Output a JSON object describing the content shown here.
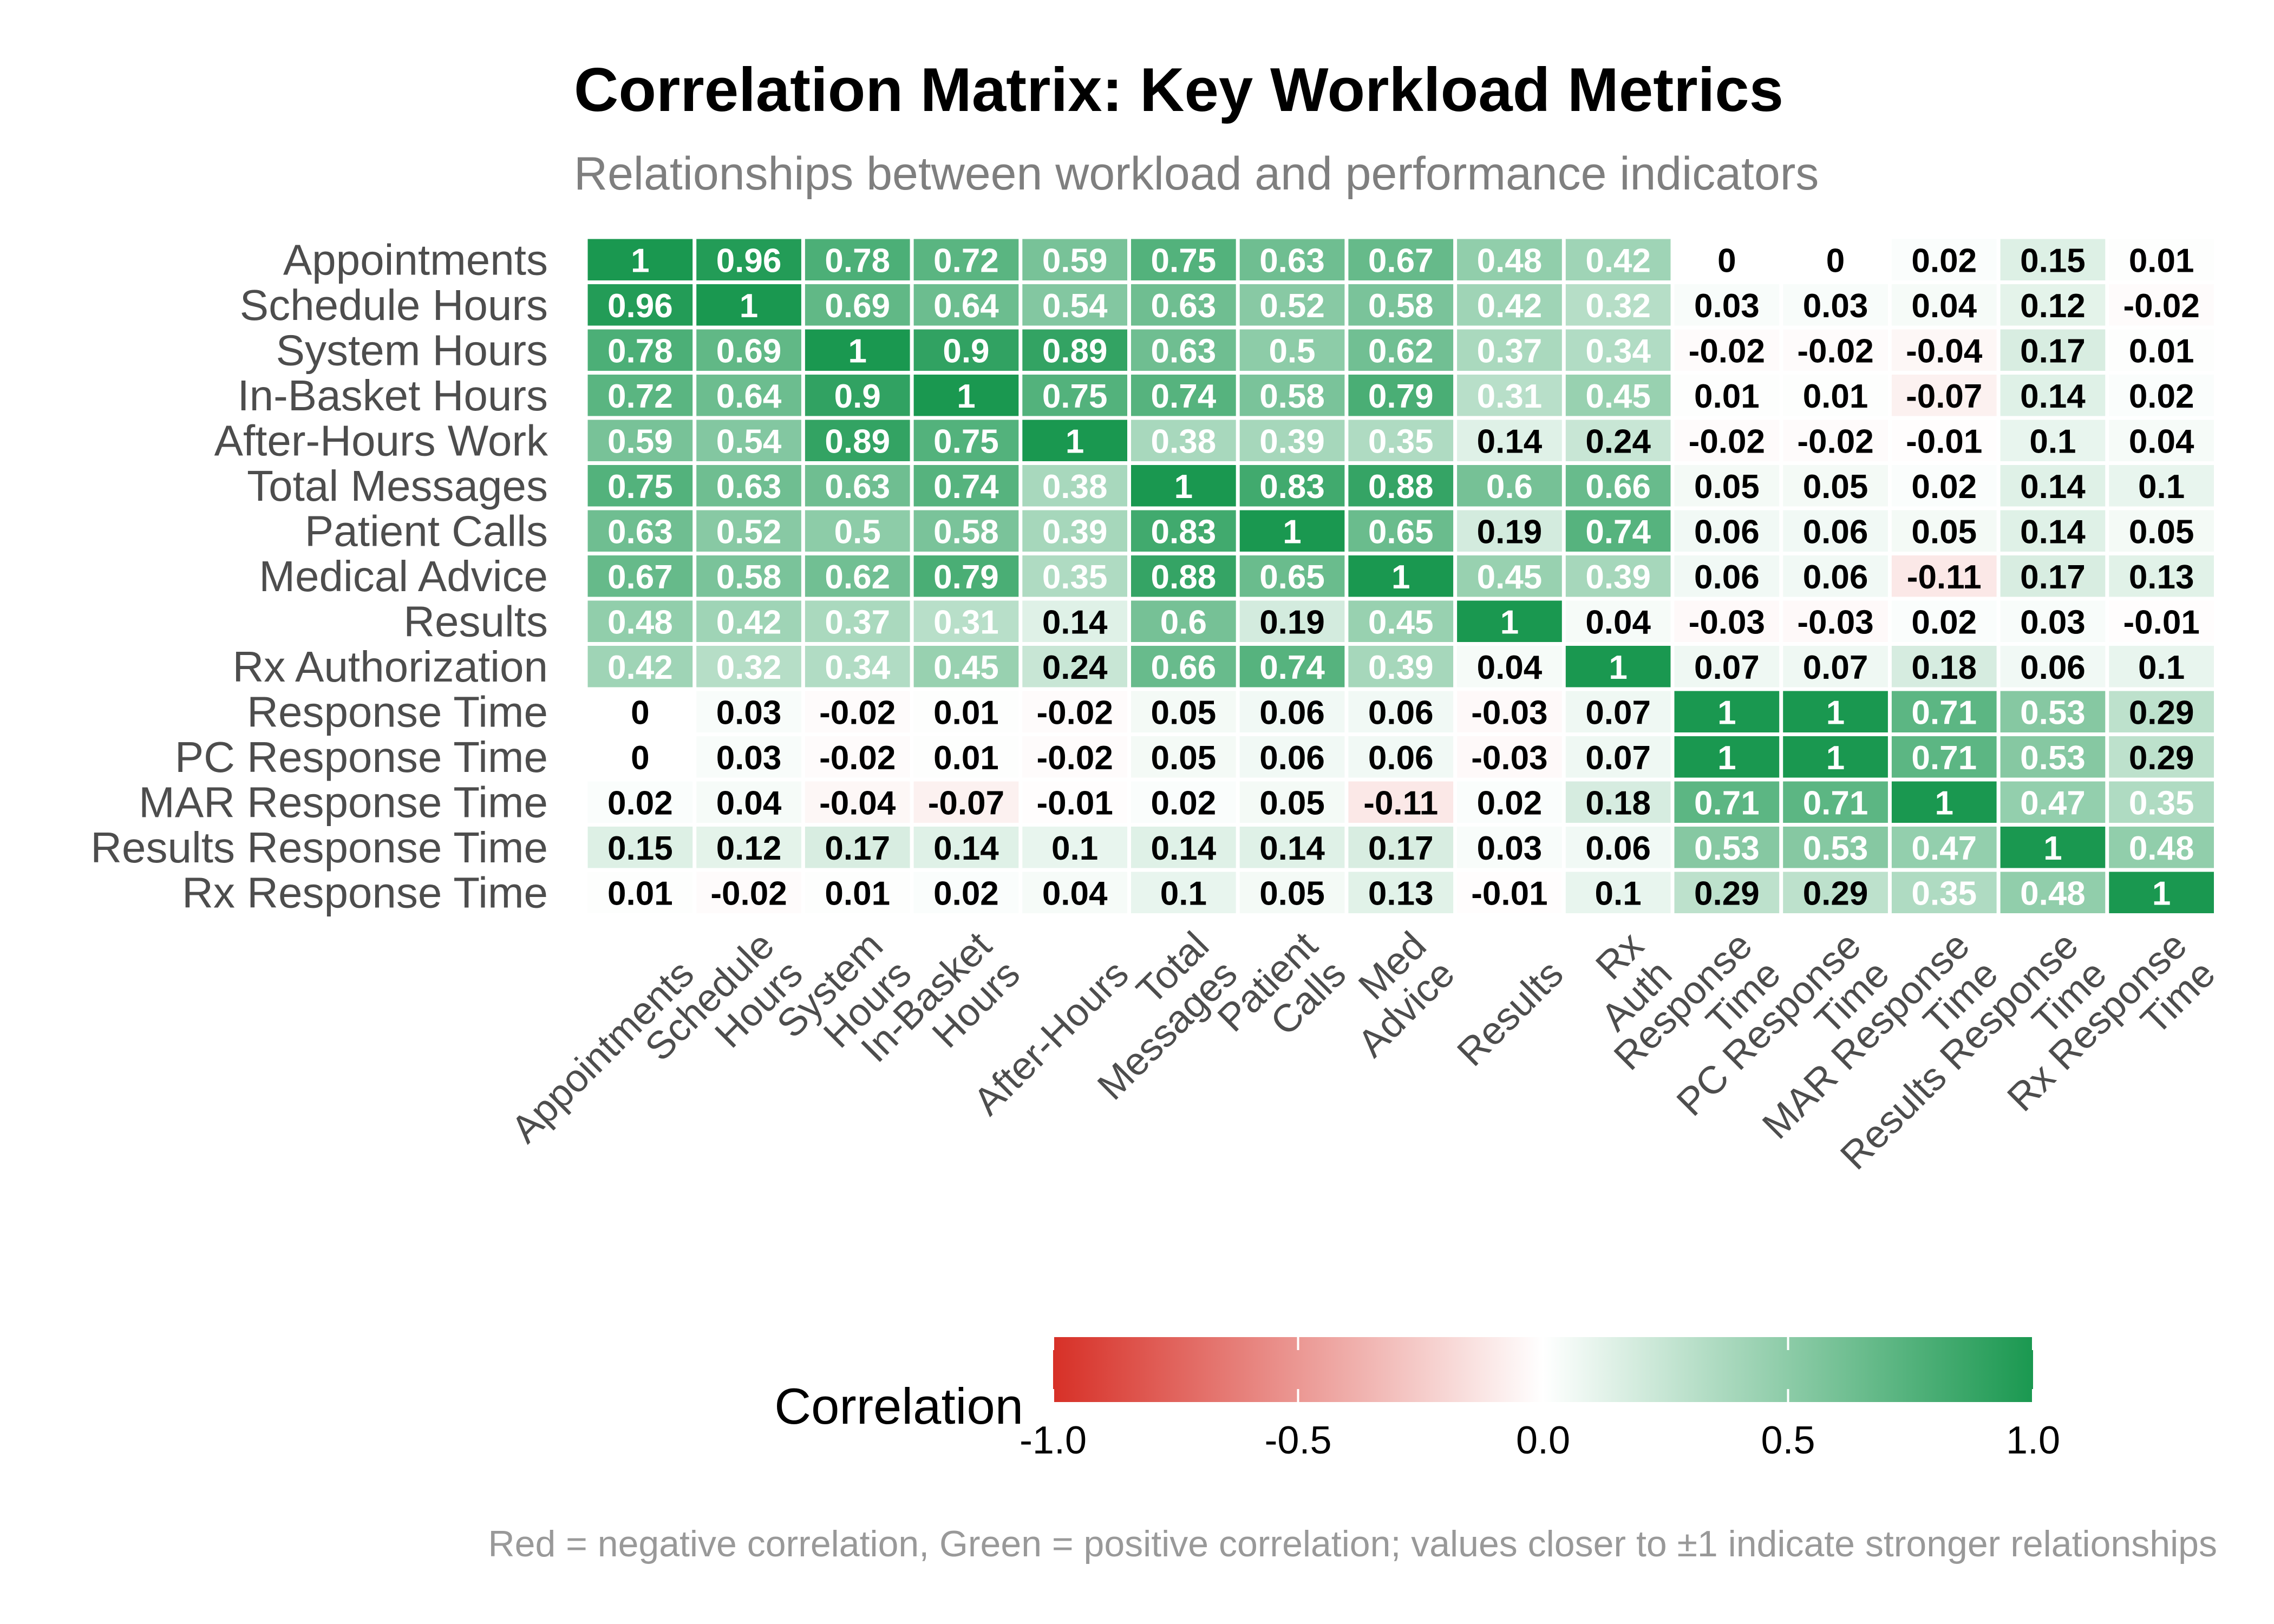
{
  "chart_data": {
    "type": "heatmap",
    "title": "Correlation Matrix: Key Workload Metrics",
    "subtitle": "Relationships between workload and performance indicators",
    "caption": "Red = negative correlation, Green = positive correlation; values closer to ±1 indicate stronger relationships",
    "row_labels": [
      "Appointments",
      "Schedule Hours",
      "System Hours",
      "In-Basket Hours",
      "After-Hours Work",
      "Total Messages",
      "Patient Calls",
      "Medical Advice",
      "Results",
      "Rx Authorization",
      "Response Time",
      "PC Response Time",
      "MAR Response Time",
      "Results Response Time",
      "Rx Response Time"
    ],
    "col_labels": [
      [
        "Appointments"
      ],
      [
        "Schedule",
        "Hours"
      ],
      [
        "System",
        "Hours"
      ],
      [
        "In-Basket",
        "Hours"
      ],
      [
        "After-Hours"
      ],
      [
        "Total",
        "Messages"
      ],
      [
        "Patient",
        "Calls"
      ],
      [
        "Med",
        "Advice"
      ],
      [
        "Results"
      ],
      [
        "Rx",
        "Auth"
      ],
      [
        "Response",
        "Time"
      ],
      [
        "PC Response",
        "Time"
      ],
      [
        "MAR Response",
        "Time"
      ],
      [
        "Results Response",
        "Time"
      ],
      [
        "Rx Response",
        "Time"
      ]
    ],
    "values": [
      [
        1,
        0.96,
        0.78,
        0.72,
        0.59,
        0.75,
        0.63,
        0.67,
        0.48,
        0.42,
        0,
        0,
        0.02,
        0.15,
        0.01
      ],
      [
        0.96,
        1,
        0.69,
        0.64,
        0.54,
        0.63,
        0.52,
        0.58,
        0.42,
        0.32,
        0.03,
        0.03,
        0.04,
        0.12,
        -0.02
      ],
      [
        0.78,
        0.69,
        1,
        0.9,
        0.89,
        0.63,
        0.5,
        0.62,
        0.37,
        0.34,
        -0.02,
        -0.02,
        -0.04,
        0.17,
        0.01
      ],
      [
        0.72,
        0.64,
        0.9,
        1,
        0.75,
        0.74,
        0.58,
        0.79,
        0.31,
        0.45,
        0.01,
        0.01,
        -0.07,
        0.14,
        0.02
      ],
      [
        0.59,
        0.54,
        0.89,
        0.75,
        1,
        0.38,
        0.39,
        0.35,
        0.14,
        0.24,
        -0.02,
        -0.02,
        -0.01,
        0.1,
        0.04
      ],
      [
        0.75,
        0.63,
        0.63,
        0.74,
        0.38,
        1,
        0.83,
        0.88,
        0.6,
        0.66,
        0.05,
        0.05,
        0.02,
        0.14,
        0.1
      ],
      [
        0.63,
        0.52,
        0.5,
        0.58,
        0.39,
        0.83,
        1,
        0.65,
        0.19,
        0.74,
        0.06,
        0.06,
        0.05,
        0.14,
        0.05
      ],
      [
        0.67,
        0.58,
        0.62,
        0.79,
        0.35,
        0.88,
        0.65,
        1,
        0.45,
        0.39,
        0.06,
        0.06,
        -0.11,
        0.17,
        0.13
      ],
      [
        0.48,
        0.42,
        0.37,
        0.31,
        0.14,
        0.6,
        0.19,
        0.45,
        1,
        0.04,
        -0.03,
        -0.03,
        0.02,
        0.03,
        -0.01
      ],
      [
        0.42,
        0.32,
        0.34,
        0.45,
        0.24,
        0.66,
        0.74,
        0.39,
        0.04,
        1,
        0.07,
        0.07,
        0.18,
        0.06,
        0.1
      ],
      [
        0,
        0.03,
        -0.02,
        0.01,
        -0.02,
        0.05,
        0.06,
        0.06,
        -0.03,
        0.07,
        1,
        1,
        0.71,
        0.53,
        0.29
      ],
      [
        0,
        0.03,
        -0.02,
        0.01,
        -0.02,
        0.05,
        0.06,
        0.06,
        -0.03,
        0.07,
        1,
        1,
        0.71,
        0.53,
        0.29
      ],
      [
        0.02,
        0.04,
        -0.04,
        -0.07,
        -0.01,
        0.02,
        0.05,
        -0.11,
        0.02,
        0.18,
        0.71,
        0.71,
        1,
        0.47,
        0.35
      ],
      [
        0.15,
        0.12,
        0.17,
        0.14,
        0.1,
        0.14,
        0.14,
        0.17,
        0.03,
        0.06,
        0.53,
        0.53,
        0.47,
        1,
        0.48
      ],
      [
        0.01,
        -0.02,
        0.01,
        0.02,
        0.04,
        0.1,
        0.05,
        0.13,
        -0.01,
        0.1,
        0.29,
        0.29,
        0.35,
        0.48,
        1
      ]
    ],
    "color_scale": {
      "low": "#d73027",
      "mid": "#ffffff",
      "high": "#1a9850",
      "limits": [
        -1,
        1
      ]
    },
    "legend": {
      "title": "Correlation",
      "placement": "bottom",
      "ticks": [
        "-1.0",
        "-0.5",
        "0.0",
        "0.5",
        "1.0"
      ]
    }
  }
}
